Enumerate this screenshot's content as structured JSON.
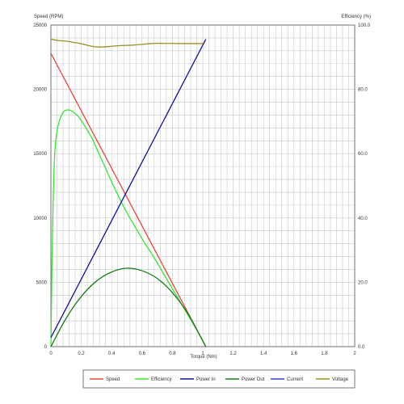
{
  "chart_data": {
    "type": "line",
    "xlabel": "Torque (Nm)",
    "ylabel_left": "Speed (RPM)",
    "ylabel_right": "Efficiency (%)",
    "xlim": [
      0,
      2
    ],
    "ylim_left": [
      0,
      25000
    ],
    "ylim_right": [
      0,
      100
    ],
    "grid": true,
    "legend_position": "bottom",
    "x_ticks": [
      "0",
      "0.2",
      "0.4",
      "0.6",
      "0.8",
      "1",
      "1.2",
      "1.4",
      "1.6",
      "1.8",
      "2"
    ],
    "y_left_ticks": [
      "0",
      "5000",
      "10000",
      "15000",
      "20000",
      "25000"
    ],
    "y_right_ticks": [
      "0.0",
      "20.0",
      "40.0",
      "60.0",
      "80.0",
      "100.0"
    ],
    "series": [
      {
        "name": "Speed",
        "color": "#e8453c",
        "axis": "left",
        "x": [
          0,
          1.02
        ],
        "y": [
          22800,
          0
        ]
      },
      {
        "name": "Efficiency",
        "color": "#33e833",
        "axis": "left",
        "x": [
          0,
          0.005,
          0.01,
          0.02,
          0.03,
          0.05,
          0.08,
          0.11,
          0.14,
          0.18,
          0.22,
          0.27,
          0.32,
          0.37,
          0.42,
          0.47,
          0.52,
          0.57,
          0.62,
          0.67,
          0.72,
          0.77,
          0.82,
          0.87,
          0.92,
          0.97,
          1.02
        ],
        "y": [
          0,
          4500,
          8500,
          13500,
          15800,
          17300,
          18200,
          18400,
          18300,
          17900,
          17200,
          16200,
          14900,
          13600,
          12300,
          11100,
          10000,
          9000,
          8000,
          7100,
          6100,
          5100,
          4100,
          3100,
          2100,
          1100,
          0
        ]
      },
      {
        "name": "Power In",
        "color": "#1010a0",
        "axis": "left",
        "x": [
          0,
          1.02
        ],
        "y": [
          700,
          23900
        ]
      },
      {
        "name": "Power Out",
        "color": "#1a7a1a",
        "axis": "left",
        "x": [
          0,
          0.1,
          0.2,
          0.3,
          0.4,
          0.5,
          0.6,
          0.7,
          0.8,
          0.9,
          1.02
        ],
        "y": [
          0,
          2200,
          3900,
          5100,
          5800,
          6100,
          5900,
          5300,
          4200,
          2600,
          0
        ]
      },
      {
        "name": "Current",
        "color": "#3a3ad0",
        "axis": "left",
        "x": [],
        "y": []
      },
      {
        "name": "Voltage",
        "color": "#a08c20",
        "axis": "left",
        "x": [
          0,
          0.05,
          0.1,
          0.15,
          0.2,
          0.25,
          0.3,
          0.35,
          0.4,
          0.45,
          0.5,
          0.55,
          0.6,
          0.65,
          0.7,
          0.75,
          0.8,
          0.85,
          0.9,
          0.95,
          1.0
        ],
        "y": [
          23900,
          23800,
          23750,
          23650,
          23550,
          23400,
          23300,
          23300,
          23350,
          23400,
          23420,
          23450,
          23500,
          23550,
          23580,
          23570,
          23570,
          23560,
          23560,
          23560,
          23560
        ]
      }
    ]
  }
}
